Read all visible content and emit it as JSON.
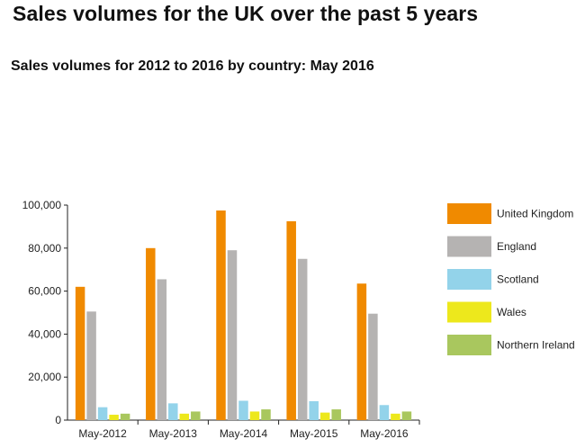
{
  "title": "Sales volumes for the UK over the past 5 years",
  "subtitle": "Sales volumes for 2012 to 2016 by country: May 2016",
  "chart_data": {
    "type": "bar",
    "categories": [
      "May-2012",
      "May-2013",
      "May-2014",
      "May-2015",
      "May-2016"
    ],
    "series": [
      {
        "name": "United Kingdom",
        "color": "#f08a00",
        "values": [
          62000,
          80000,
          97500,
          92500,
          63500
        ]
      },
      {
        "name": "England",
        "color": "#b5b3b2",
        "values": [
          50500,
          65500,
          79000,
          75000,
          49500
        ]
      },
      {
        "name": "Scotland",
        "color": "#93d3ea",
        "values": [
          6000,
          7800,
          9000,
          8800,
          7000
        ]
      },
      {
        "name": "Wales",
        "color": "#ede81c",
        "values": [
          2500,
          3000,
          4000,
          3500,
          3000
        ]
      },
      {
        "name": "Northern Ireland",
        "color": "#a9c75e",
        "values": [
          3000,
          4000,
          5000,
          5000,
          4000
        ]
      }
    ],
    "y_ticks": [
      "0",
      "20,000",
      "40,000",
      "60,000",
      "80,000",
      "100,000"
    ],
    "ylim": [
      0,
      100000
    ],
    "grid": false,
    "legend": "right"
  }
}
